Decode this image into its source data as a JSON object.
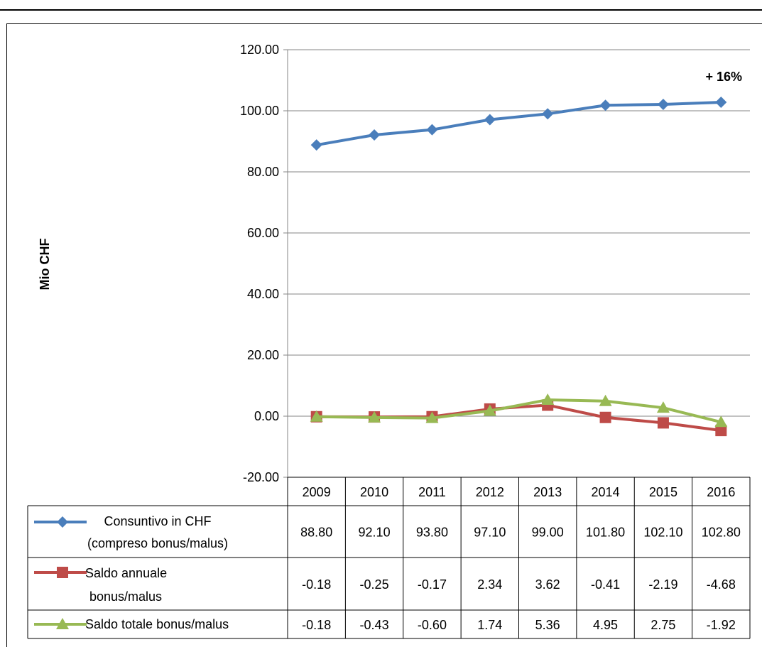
{
  "chart_data": {
    "type": "line",
    "title": "",
    "xlabel": "",
    "ylabel": "Mio  CHF",
    "ylim": [
      -20,
      120
    ],
    "yticks": [
      "-20.00",
      "0.00",
      "20.00",
      "40.00",
      "60.00",
      "80.00",
      "100.00",
      "120.00"
    ],
    "grid": true,
    "legend": "data-table",
    "annotation": "+ 16%",
    "categories": [
      "2009",
      "2010",
      "2011",
      "2012",
      "2013",
      "2014",
      "2015",
      "2016"
    ],
    "series": [
      {
        "name": "Consuntivo in CHF (compreso bonus/malus)",
        "name_lines": [
          "Consuntivo in CHF",
          "(compreso bonus/malus)"
        ],
        "color": "#4a7ebb",
        "marker": "diamond",
        "values": [
          88.8,
          92.1,
          93.8,
          97.1,
          99.0,
          101.8,
          102.1,
          102.8
        ],
        "labels": [
          "88.80",
          "92.10",
          "93.80",
          "97.10",
          "99.00",
          "101.80",
          "102.10",
          "102.80"
        ]
      },
      {
        "name": "Saldo annuale bonus/malus",
        "name_lines": [
          "Saldo annuale",
          "bonus/malus"
        ],
        "color": "#be4b48",
        "marker": "square",
        "values": [
          -0.18,
          -0.25,
          -0.17,
          2.34,
          3.62,
          -0.41,
          -2.19,
          -4.68
        ],
        "labels": [
          "-0.18",
          "-0.25",
          "-0.17",
          "2.34",
          "3.62",
          "-0.41",
          "-2.19",
          "-4.68"
        ]
      },
      {
        "name": "Saldo totale bonus/malus",
        "name_lines": [
          "Saldo totale bonus/malus"
        ],
        "color": "#98b954",
        "marker": "triangle",
        "values": [
          -0.18,
          -0.43,
          -0.6,
          1.74,
          5.36,
          4.95,
          2.75,
          -1.92
        ],
        "labels": [
          "-0.18",
          "-0.43",
          "-0.60",
          "1.74",
          "5.36",
          "4.95",
          "2.75",
          "-1.92"
        ]
      }
    ]
  }
}
